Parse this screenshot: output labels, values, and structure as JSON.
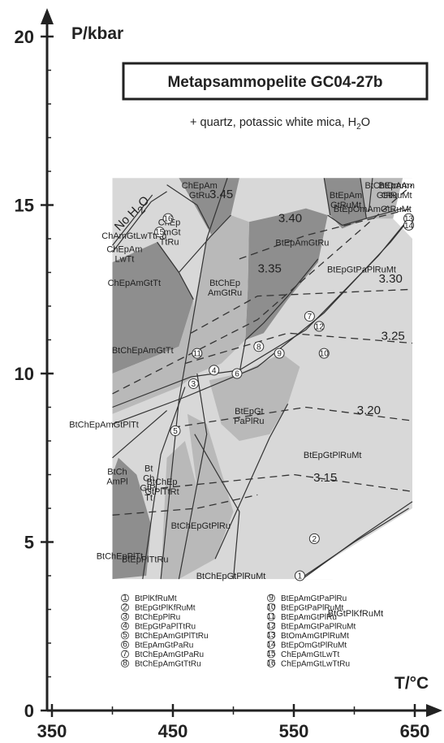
{
  "chart_data": {
    "type": "phase-diagram",
    "title": "Metapsammopelite  GC04-27b",
    "subtitle": "+ quartz, potassic white mica, H",
    "subtitle_sub": "2",
    "subtitle_tail": "O",
    "xlabel": "T/°C",
    "ylabel": "P/kbar",
    "xlim": [
      330,
      650
    ],
    "ylim": [
      0,
      20
    ],
    "x_ticks": [
      350,
      450,
      550,
      650
    ],
    "y_ticks": [
      0,
      5,
      10,
      15,
      20
    ],
    "x_ticklabels": [
      "350",
      "450",
      "550",
      "650"
    ],
    "y_ticklabels": [
      "0",
      "5",
      "10",
      "15",
      "20"
    ],
    "no_water_label": "No H",
    "no_water_sub": "2",
    "no_water_tail": "O",
    "isopleths": [
      {
        "label": "3.45",
        "T": 490,
        "P": 15.2
      },
      {
        "label": "3.40",
        "T": 547,
        "P": 14.5
      },
      {
        "label": "3.35",
        "T": 530,
        "P": 13.0
      },
      {
        "label": "3.30",
        "T": 630,
        "P": 12.7
      },
      {
        "label": "3.25",
        "T": 632,
        "P": 11.0
      },
      {
        "label": "3.20",
        "T": 612,
        "P": 8.8
      },
      {
        "label": "3.15",
        "T": 576,
        "P": 6.8
      }
    ],
    "fields": [
      {
        "lines": [
          "ChEpAm",
          "GtRu"
        ],
        "T": 472,
        "P": 15.5
      },
      {
        "lines": [
          "BtChEpAm",
          "GtRu"
        ],
        "T": 627,
        "P": 15.5
      },
      {
        "lines": [
          "BtOmAm",
          "GtRuMt"
        ],
        "T": 635,
        "P": 15.5
      },
      {
        "lines": [
          "BtEpAm",
          "GtRuMt"
        ],
        "T": 593,
        "P": 15.2
      },
      {
        "lines": [
          "BtEpAmGtRu"
        ],
        "T": 557,
        "P": 13.8
      },
      {
        "lines": [
          "BtChEp",
          "AmGtRu"
        ],
        "T": 493,
        "P": 12.6
      },
      {
        "lines": [
          "ChEpAmGtTt"
        ],
        "T": 418,
        "P": 12.6
      },
      {
        "lines": [
          "BtChEpAmGtTt"
        ],
        "T": 425,
        "P": 10.6
      },
      {
        "lines": [
          "BtEpGt",
          "PaPlRu"
        ],
        "T": 513,
        "P": 8.8
      },
      {
        "lines": [
          "BtChEpAmGtPlTt"
        ],
        "T": 393,
        "P": 8.4
      },
      {
        "lines": [
          "BtEpGtPlRuMt"
        ],
        "T": 582,
        "P": 7.5
      },
      {
        "lines": [
          "BtChEp",
          "GtPlTtRt"
        ],
        "T": 441,
        "P": 6.7
      },
      {
        "lines": [
          "BtChEpGtPlRu"
        ],
        "T": 473,
        "P": 5.4
      },
      {
        "lines": [
          "BtChEpGtPlRuMt"
        ],
        "T": 498,
        "P": 3.9
      },
      {
        "lines": [
          "BtChEpPlTt"
        ],
        "T": 406,
        "P": 4.5
      },
      {
        "lines": [
          "BtGtPlKfRuMt"
        ],
        "T": 601,
        "P": 2.8
      },
      {
        "lines": [
          "ChEp",
          "AmGt",
          "TtRu"
        ],
        "T": 447,
        "P": 14.4
      },
      {
        "lines": [
          "ChAmGtLwTtRu"
        ],
        "T": 418,
        "P": 14.0
      },
      {
        "lines": [
          "ChEpAm",
          "LwTt"
        ],
        "T": 410,
        "P": 13.6
      },
      {
        "lines": [
          "BtCh",
          "AmPl"
        ],
        "T": 404,
        "P": 7.0
      },
      {
        "lines": [
          "Bt",
          "Ch",
          "GtPl",
          "Tt"
        ],
        "T": 430,
        "P": 7.1
      },
      {
        "lines": [
          "BtEpGtPaPlRuMt"
        ],
        "T": 606,
        "P": 13.0
      },
      {
        "lines": [
          "BtEpOmAmGtRuMt"
        ],
        "T": 615,
        "P": 14.8
      },
      {
        "lines": [
          "BtEpPlTtRu"
        ],
        "T": 427,
        "P": 4.4
      }
    ],
    "numbered_points": [
      {
        "n": "1",
        "T": 555,
        "P": 4.0
      },
      {
        "n": "2",
        "T": 567,
        "P": 5.1
      },
      {
        "n": "3",
        "T": 467,
        "P": 9.7
      },
      {
        "n": "4",
        "T": 484,
        "P": 10.1
      },
      {
        "n": "5",
        "T": 452,
        "P": 8.3
      },
      {
        "n": "6",
        "T": 503,
        "P": 10.0
      },
      {
        "n": "7",
        "T": 563,
        "P": 11.7
      },
      {
        "n": "8",
        "T": 521,
        "P": 10.8
      },
      {
        "n": "9",
        "T": 538,
        "P": 10.6
      },
      {
        "n": "10",
        "T": 575,
        "P": 10.6
      },
      {
        "n": "11",
        "T": 470,
        "P": 10.6
      },
      {
        "n": "12",
        "T": 571,
        "P": 11.4
      },
      {
        "n": "13",
        "T": 645,
        "P": 14.6
      },
      {
        "n": "14",
        "T": 645,
        "P": 14.4
      },
      {
        "n": "15",
        "T": 439,
        "P": 14.2
      },
      {
        "n": "16",
        "T": 446,
        "P": 14.6
      }
    ],
    "legend": [
      {
        "n": "1",
        "label": "BtPlKfRuMt"
      },
      {
        "n": "2",
        "label": "BtEpGtPlKfRuMt"
      },
      {
        "n": "3",
        "label": "BtChEpPlRu"
      },
      {
        "n": "4",
        "label": "BtEpGtPaPlTtRu"
      },
      {
        "n": "5",
        "label": "BtChEpAmGtPlTtRu"
      },
      {
        "n": "6",
        "label": "BtEpAmGtPaRu"
      },
      {
        "n": "7",
        "label": "BtChEpAmGtPaRu"
      },
      {
        "n": "8",
        "label": "BtChEpAmGtTtRu"
      },
      {
        "n": "9",
        "label": "BtEpAmGtPaPlRu"
      },
      {
        "n": "10",
        "label": "BtEpGtPaPlRuMt"
      },
      {
        "n": "11",
        "label": "BtEpAmGtPlRu"
      },
      {
        "n": "12",
        "label": "BtEpAmGtPaPlRuMt"
      },
      {
        "n": "13",
        "label": "BtOmAmGtPlRuMt"
      },
      {
        "n": "14",
        "label": "BtEpOmGtPlRuMt"
      },
      {
        "n": "15",
        "label": "ChEpAmGtLwTt"
      },
      {
        "n": "16",
        "label": "ChEpAmGtLwTtRu"
      }
    ],
    "colors": {
      "dark_field": "#8e8e8e",
      "mid_field": "#b9b9b9",
      "light_field": "#d8d8d8",
      "white_field": "#ffffff",
      "line": "#333333"
    }
  }
}
